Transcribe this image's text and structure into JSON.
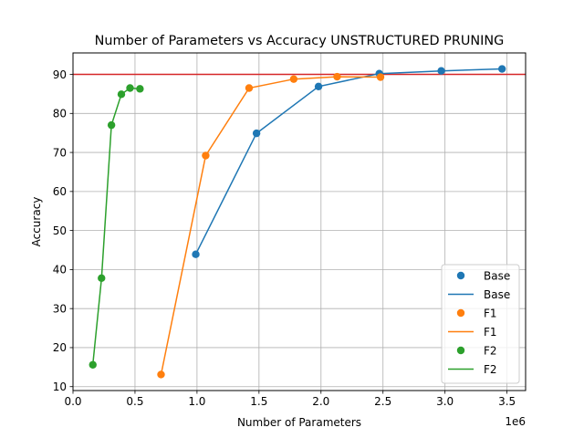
{
  "chart_data": {
    "type": "line",
    "title": "Number of Parameters vs Accuracy UNSTRUCTURED PRUNING",
    "xlabel": "Number of Parameters",
    "ylabel": "Accuracy",
    "x_multiplier_label": "1e6",
    "xlim": [
      0,
      3650000
    ],
    "ylim": [
      9,
      95.5
    ],
    "x_ticks": [
      0,
      500000,
      1000000,
      1500000,
      2000000,
      2500000,
      3000000,
      3500000
    ],
    "x_tick_labels": [
      "0.0",
      "0.5",
      "1.0",
      "1.5",
      "2.0",
      "2.5",
      "3.0",
      "3.5"
    ],
    "y_ticks": [
      10,
      20,
      30,
      40,
      50,
      60,
      70,
      80,
      90
    ],
    "y_tick_labels": [
      "10",
      "20",
      "30",
      "40",
      "50",
      "60",
      "70",
      "80",
      "90"
    ],
    "grid": true,
    "legend_position": "bottom-right",
    "reference_line": {
      "y": 90,
      "color": "#d62728"
    },
    "series": [
      {
        "name": "Base",
        "color": "#1f77b4",
        "x": [
          990000,
          1480000,
          1980000,
          2470000,
          2970000,
          3460000
        ],
        "y": [
          43.9,
          74.9,
          86.9,
          90.2,
          90.9,
          91.4
        ]
      },
      {
        "name": "F1",
        "color": "#ff7f0e",
        "x": [
          710000,
          1070000,
          1420000,
          1780000,
          2130000,
          2480000
        ],
        "y": [
          13.1,
          69.2,
          86.5,
          88.8,
          89.4,
          89.3
        ]
      },
      {
        "name": "F2",
        "color": "#2ca02c",
        "x": [
          160000,
          230000,
          310000,
          390000,
          460000,
          540000
        ],
        "y": [
          15.6,
          37.8,
          77.0,
          84.9,
          86.5,
          86.3
        ]
      }
    ]
  }
}
